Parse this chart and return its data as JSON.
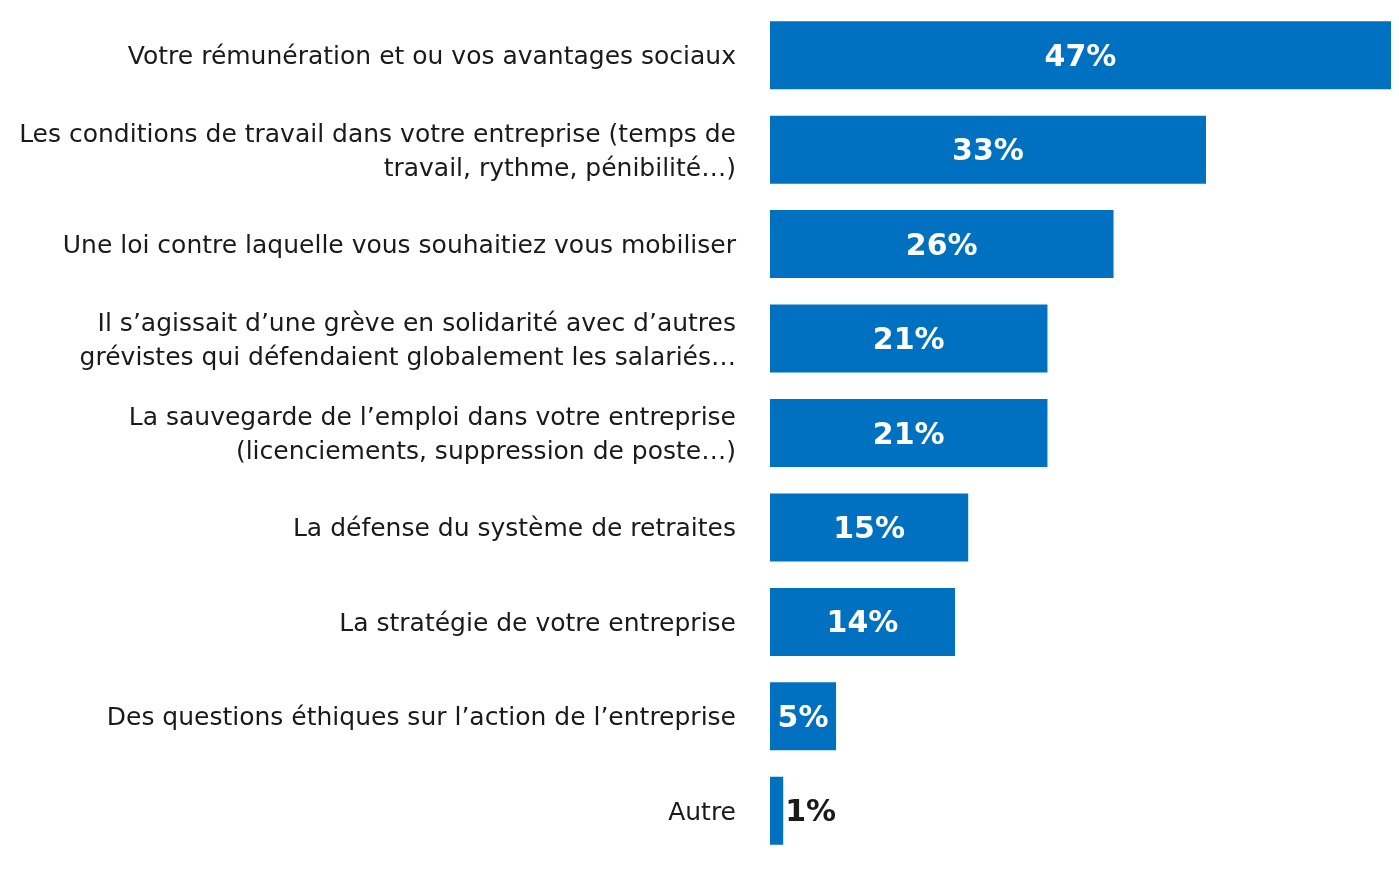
{
  "chart_data": {
    "type": "bar",
    "orientation": "horizontal",
    "value_labels": [
      "47%",
      "33%",
      "26%",
      "21%",
      "21%",
      "15%",
      "14%",
      "5%",
      "1%"
    ],
    "color": "#0070c0",
    "categories": [
      "Votre rémunération et ou vos avantages sociaux",
      "Les conditions de travail dans votre entreprise (temps de travail, rythme, pénibilité…)",
      "Une loi contre laquelle vous souhaitiez vous mobiliser",
      "Il s’agissait d’une grève en solidarité avec d’autres grévistes qui défendaient globalement les salariés…",
      "La sauvegarde de l’emploi dans votre entreprise (licenciements, suppression de poste…)",
      "La défense du système de retraites",
      "La stratégie de votre entreprise",
      "Des questions éthiques sur l’action de l’entreprise",
      "Autre"
    ],
    "values": [
      47,
      33,
      26,
      21,
      21,
      15,
      14,
      5,
      1
    ]
  }
}
